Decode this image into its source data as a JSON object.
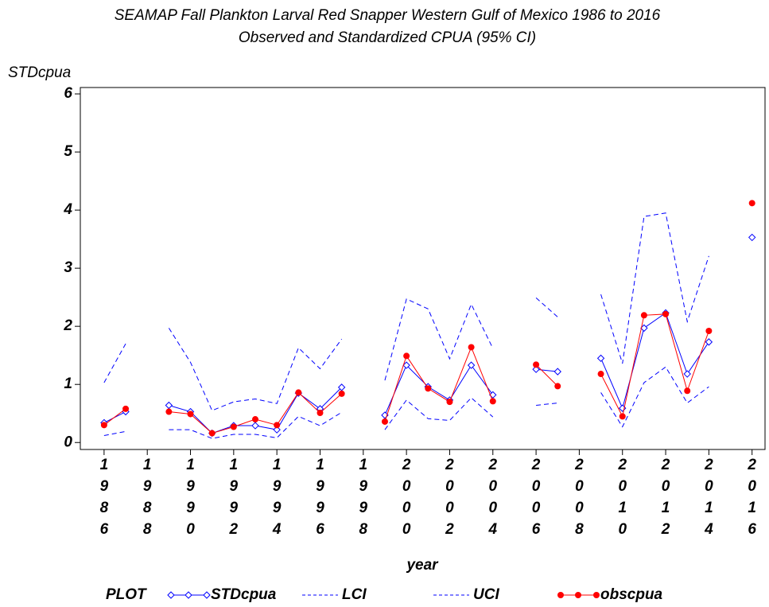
{
  "chart_data": {
    "type": "line",
    "title": "SEAMAP Fall Plankton Larval Red Snapper Western Gulf of Mexico 1986 to 2016",
    "subtitle": "Observed and Standardized CPUA (95% CI)",
    "y_label": "STDcpua",
    "x_label": "year",
    "legend_title": "PLOT",
    "x": [
      1986,
      1987,
      1988,
      1989,
      1990,
      1991,
      1992,
      1993,
      1994,
      1995,
      1996,
      1997,
      1998,
      1999,
      2000,
      2001,
      2002,
      2003,
      2004,
      2005,
      2006,
      2007,
      2008,
      2009,
      2010,
      2011,
      2012,
      2013,
      2014,
      2015,
      2016
    ],
    "series": [
      {
        "name": "STDcpua",
        "color": "#0000ff",
        "marker": "diamond",
        "dashed": false,
        "values": [
          0.34,
          0.53,
          null,
          0.64,
          0.53,
          0.16,
          0.29,
          0.29,
          0.22,
          0.85,
          0.58,
          0.95,
          null,
          0.47,
          1.33,
          0.96,
          0.73,
          1.33,
          0.82,
          null,
          1.26,
          1.22,
          null,
          1.45,
          0.59,
          1.97,
          2.23,
          1.18,
          1.73,
          null,
          3.53
        ]
      },
      {
        "name": "LCI",
        "color": "#0000ff",
        "marker": "none",
        "dashed": true,
        "values": [
          0.12,
          0.19,
          null,
          0.22,
          0.22,
          0.07,
          0.14,
          0.14,
          0.08,
          0.45,
          0.29,
          0.52,
          null,
          0.22,
          0.73,
          0.41,
          0.38,
          0.77,
          0.44,
          null,
          0.64,
          0.68,
          null,
          0.86,
          0.27,
          1.03,
          1.3,
          0.68,
          0.96,
          null,
          null
        ]
      },
      {
        "name": "UCI",
        "color": "#0000ff",
        "marker": "none",
        "dashed": true,
        "values": [
          1.03,
          1.7,
          null,
          1.97,
          1.38,
          0.55,
          0.7,
          0.75,
          0.67,
          1.63,
          1.27,
          1.78,
          null,
          1.07,
          2.47,
          2.3,
          1.44,
          2.38,
          1.62,
          null,
          2.49,
          2.16,
          null,
          2.55,
          1.36,
          3.89,
          3.95,
          2.08,
          3.21,
          null,
          null
        ]
      },
      {
        "name": "obscpua",
        "color": "#ff0000",
        "marker": "circle",
        "dashed": false,
        "values": [
          0.3,
          0.58,
          null,
          0.53,
          0.49,
          0.16,
          0.27,
          0.4,
          0.3,
          0.86,
          0.51,
          0.84,
          null,
          0.36,
          1.49,
          0.93,
          0.7,
          1.64,
          0.71,
          null,
          1.34,
          0.97,
          null,
          1.18,
          0.45,
          2.19,
          2.21,
          0.89,
          1.92,
          null,
          4.12
        ]
      }
    ],
    "xlim": [
      1984.9,
      2016.6
    ],
    "xticks": [
      1986,
      1988,
      1990,
      1992,
      1994,
      1996,
      1998,
      2000,
      2002,
      2004,
      2006,
      2008,
      2010,
      2012,
      2014,
      2016
    ],
    "ylim": [
      -0.12,
      6.11
    ],
    "yticks": [
      0,
      1,
      2,
      3,
      4,
      5,
      6
    ],
    "grid": false
  }
}
